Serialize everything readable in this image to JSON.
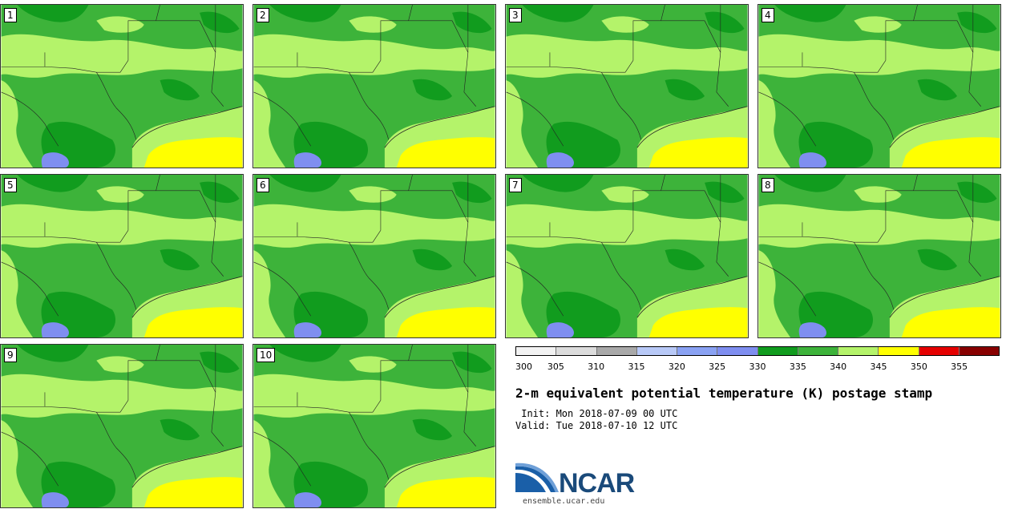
{
  "panels": [
    {
      "label": "1"
    },
    {
      "label": "2"
    },
    {
      "label": "3"
    },
    {
      "label": "4"
    },
    {
      "label": "5"
    },
    {
      "label": "6"
    },
    {
      "label": "7"
    },
    {
      "label": "8"
    },
    {
      "label": "9"
    },
    {
      "label": "10"
    }
  ],
  "colorbar": {
    "ticks": [
      "300",
      "305",
      "310",
      "315",
      "320",
      "325",
      "330",
      "335",
      "340",
      "345",
      "350",
      "355"
    ],
    "colors": [
      "#f2f2f2",
      "#dcdcdc",
      "#a9a9a9",
      "#b8c9f7",
      "#8aa2f3",
      "#7f8ef0",
      "#119c1e",
      "#3db33a",
      "#b4f36a",
      "#ffff00",
      "#e50000",
      "#880000"
    ]
  },
  "map_colors": {
    "dark_green": "#119c1e",
    "mid_green": "#3db33a",
    "light_green": "#b4f36a",
    "yellow": "#ffff00",
    "blue": "#7f8ef0"
  },
  "header": {
    "title": "2-m equivalent potential temperature (K) postage stamp",
    "init": " Init: Mon 2018-07-09 00 UTC",
    "valid": "Valid: Tue 2018-07-10 12 UTC"
  },
  "logo": {
    "name": "NCAR",
    "url": "ensemble.ucar.edu"
  }
}
